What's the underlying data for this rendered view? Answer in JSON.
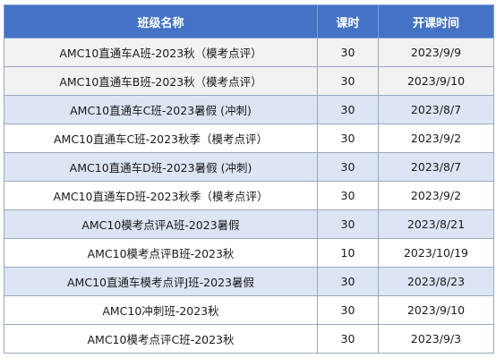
{
  "table": {
    "headers": {
      "name": "班级名称",
      "hours": "课时",
      "start": "开课时间"
    },
    "rows": [
      {
        "name": "AMC10直通车A班-2023秋（模考点评）",
        "hours": "30",
        "start": "2023/9/9",
        "style": "odd"
      },
      {
        "name": "AMC10直通车B班-2023秋（模考点评）",
        "hours": "30",
        "start": "2023/9/10",
        "style": "odd"
      },
      {
        "name": "AMC10直通车C班-2023暑假 (冲刺)",
        "hours": "30",
        "start": "2023/8/7",
        "style": "blue"
      },
      {
        "name": "AMC10直通车C班-2023秋季（模考点评）",
        "hours": "30",
        "start": "2023/9/2",
        "style": "even"
      },
      {
        "name": "AMC10直通车D班-2023暑假 (冲刺)",
        "hours": "30",
        "start": "2023/8/7",
        "style": "blue"
      },
      {
        "name": "AMC10直通车D班-2023秋季（模考点评）",
        "hours": "30",
        "start": "2023/9/2",
        "style": "even"
      },
      {
        "name": "AMC10模考点评A班-2023暑假",
        "hours": "30",
        "start": "2023/8/21",
        "style": "blue"
      },
      {
        "name": "AMC10模考点评B班-2023秋",
        "hours": "10",
        "start": "2023/10/19",
        "style": "even"
      },
      {
        "name": "AMC10直通车模考点评J班-2023暑假",
        "hours": "30",
        "start": "2023/8/23",
        "style": "blue"
      },
      {
        "name": "AMC10冲刺班-2023秋",
        "hours": "30",
        "start": "2023/9/10",
        "style": "even"
      },
      {
        "name": "AMC10模考点评C班-2023秋",
        "hours": "30",
        "start": "2023/9/3",
        "style": "even"
      }
    ]
  }
}
